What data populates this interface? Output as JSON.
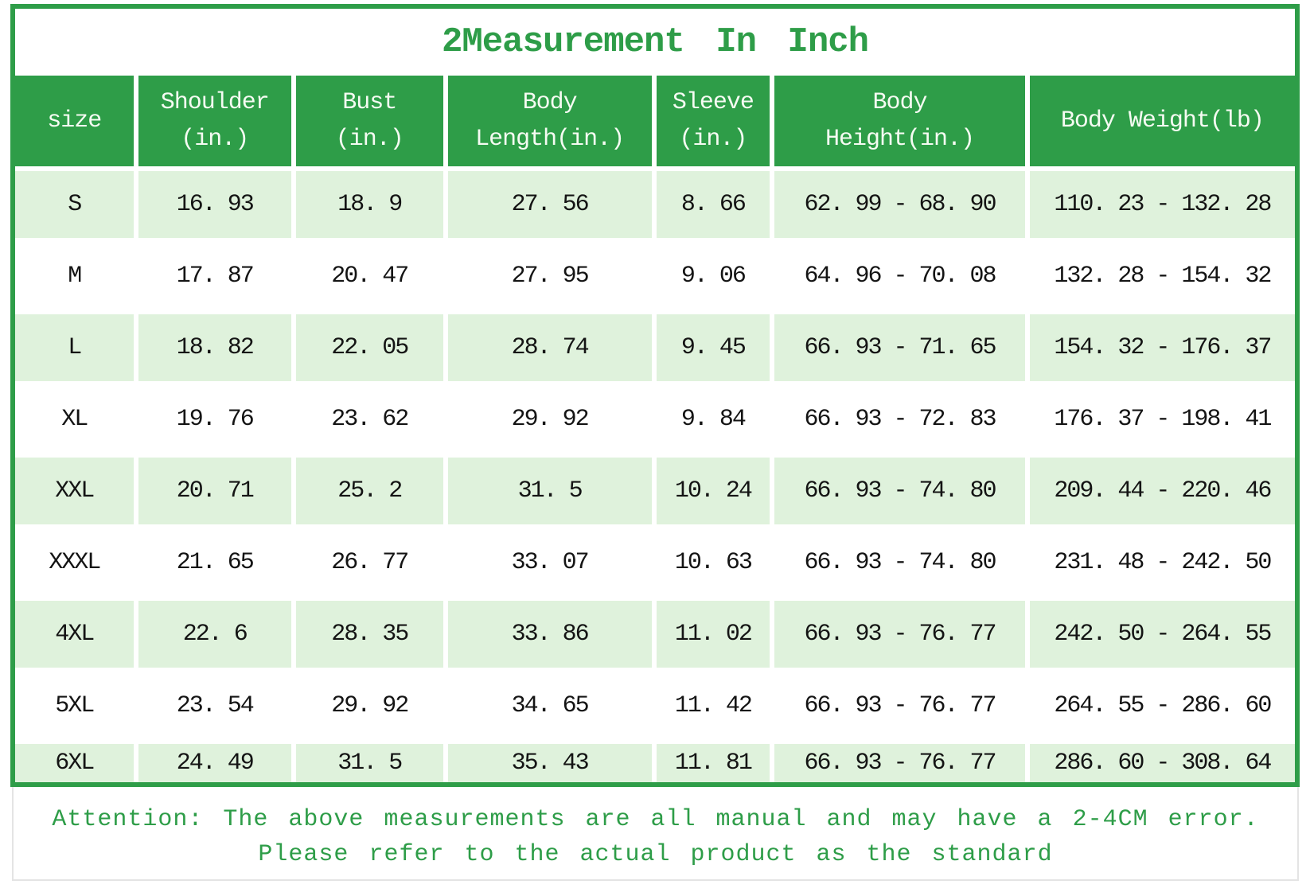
{
  "title": "2Measurement In Inch",
  "colors": {
    "green": "#2e9d48",
    "row_green": "#dff2dc",
    "header_text": "#f5fbf2",
    "cell_text": "#141414",
    "border_gray": "#e4e4e4"
  },
  "table": {
    "columns": [
      {
        "key": "size",
        "label": "size"
      },
      {
        "key": "shoulder_in",
        "label": "Shoulder\n(in.)"
      },
      {
        "key": "bust_in",
        "label": "Bust\n(in.)"
      },
      {
        "key": "body_length_in",
        "label": "Body\nLength(in.)"
      },
      {
        "key": "sleeve_in",
        "label": "Sleeve\n(in.)"
      },
      {
        "key": "body_height_in",
        "label": "Body\nHeight(in.)"
      },
      {
        "key": "body_weight_lb",
        "label": "Body Weight(lb)"
      }
    ],
    "rows": [
      {
        "cells": [
          "S",
          "16. 93",
          "18. 9",
          "27. 56",
          "8. 66",
          "62. 99 - 68. 90",
          "110. 23 - 132. 28"
        ]
      },
      {
        "cells": [
          "M",
          "17. 87",
          "20. 47",
          "27. 95",
          "9. 06",
          "64. 96 - 70. 08",
          "132. 28 - 154. 32"
        ]
      },
      {
        "cells": [
          "L",
          "18. 82",
          "22. 05",
          "28. 74",
          "9. 45",
          "66. 93 - 71. 65",
          "154. 32 - 176. 37"
        ]
      },
      {
        "cells": [
          "XL",
          "19. 76",
          "23. 62",
          "29. 92",
          "9. 84",
          "66. 93 - 72. 83",
          "176. 37 - 198. 41"
        ]
      },
      {
        "cells": [
          "XXL",
          "20. 71",
          "25. 2",
          "31. 5",
          "10. 24",
          "66. 93 - 74. 80",
          "209. 44 - 220. 46"
        ]
      },
      {
        "cells": [
          "XXXL",
          "21. 65",
          "26. 77",
          "33. 07",
          "10. 63",
          "66. 93 - 74. 80",
          "231. 48 - 242. 50"
        ]
      },
      {
        "cells": [
          "4XL",
          "22. 6",
          "28. 35",
          "33. 86",
          "11. 02",
          "66. 93 - 76. 77",
          "242. 50 - 264. 55"
        ]
      },
      {
        "cells": [
          "5XL",
          "23. 54",
          "29. 92",
          "34. 65",
          "11. 42",
          "66. 93 - 76. 77",
          "264. 55 - 286. 60"
        ]
      },
      {
        "cells": [
          "6XL",
          "24. 49",
          "31. 5",
          "35. 43",
          "11. 81",
          "66. 93 - 76. 77",
          "286. 60 - 308. 64"
        ]
      }
    ]
  },
  "footer": {
    "line1": "Attention: The above measurements are all manual and may have a 2-4CM error.",
    "line2": "Please refer to the actual product as the standard"
  }
}
